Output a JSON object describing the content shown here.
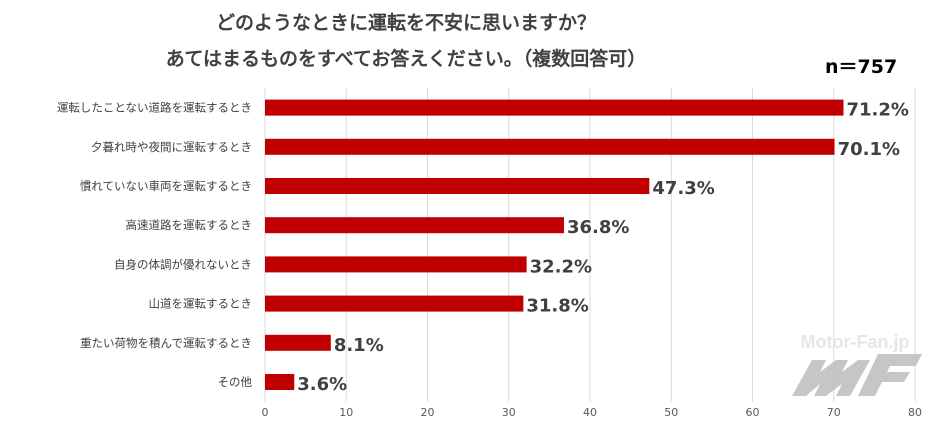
{
  "chart_data": {
    "type": "bar",
    "orientation": "horizontal",
    "title": "どのようなときに運転を不安に思いますか？",
    "subtitle": "あてはまるものをすべてお答えください。（複数回答可）",
    "sample_size": "n＝757",
    "categories": [
      "運転したことない道路を運転するとき",
      "夕暮れ時や夜間に運転するとき",
      "慣れていない車両を運転するとき",
      "高速道路を運転するとき",
      "自身の体調が優れないとき",
      "山道を運転するとき",
      "重たい荷物を積んで運転するとき",
      "その他"
    ],
    "values": [
      71.2,
      70.1,
      47.3,
      36.8,
      32.2,
      31.8,
      8.1,
      3.6
    ],
    "data_labels": [
      "71.2%",
      "70.1%",
      "47.3%",
      "36.8%",
      "32.2%",
      "31.8%",
      "8.1%",
      "3.6%"
    ],
    "xlim": [
      0,
      80
    ],
    "xticks": [
      "0",
      "10",
      "20",
      "30",
      "40",
      "50",
      "60",
      "70",
      "80"
    ],
    "grid": true,
    "bar_color": "#C00000",
    "watermark": "Motor-Fan.jp"
  }
}
